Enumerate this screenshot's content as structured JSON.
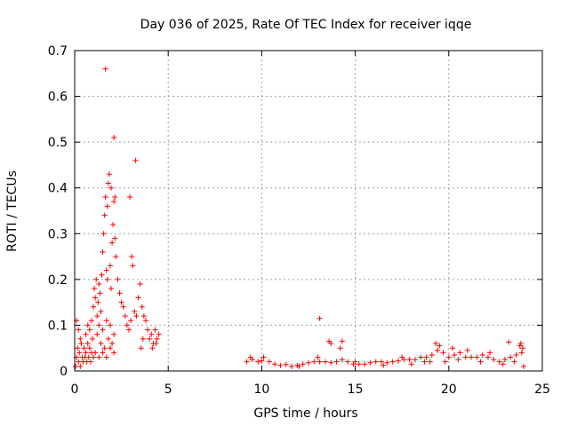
{
  "chart_data": {
    "type": "scatter",
    "title": "Day 036 of 2025, Rate Of TEC Index for receiver iqqe",
    "xlabel": "GPS time / hours",
    "ylabel": "ROTI / TECUs",
    "xlim": [
      0,
      25
    ],
    "ylim": [
      0,
      0.7
    ],
    "xticks": [
      "0",
      "5",
      "10",
      "15",
      "20",
      "25"
    ],
    "yticks": [
      "0",
      "0.1",
      "0.2",
      "0.3",
      "0.4",
      "0.5",
      "0.6",
      "0.7"
    ],
    "xtick_values": [
      0,
      5,
      10,
      15,
      20,
      25
    ],
    "ytick_values": [
      0,
      0.1,
      0.2,
      0.3,
      0.4,
      0.5,
      0.6,
      0.7
    ],
    "grid": true,
    "marker": "+",
    "series": [
      {
        "name": "ROTI",
        "color": "#ff0000",
        "points": [
          [
            0.05,
            0.01
          ],
          [
            0.1,
            0.03
          ],
          [
            0.15,
            0.05
          ],
          [
            0.2,
            0.02
          ],
          [
            0.25,
            0.04
          ],
          [
            0.3,
            0.01
          ],
          [
            0.35,
            0.06
          ],
          [
            0.4,
            0.03
          ],
          [
            0.45,
            0.02
          ],
          [
            0.5,
            0.05
          ],
          [
            0.55,
            0.03
          ],
          [
            0.6,
            0.04
          ],
          [
            0.65,
            0.02
          ],
          [
            0.7,
            0.06
          ],
          [
            0.75,
            0.03
          ],
          [
            0.8,
            0.05
          ],
          [
            0.85,
            0.02
          ],
          [
            0.9,
            0.04
          ],
          [
            0.95,
            0.07
          ],
          [
            1.0,
            0.03
          ],
          [
            0.1,
            0.11
          ],
          [
            0.2,
            0.09
          ],
          [
            0.3,
            0.07
          ],
          [
            0.6,
            0.08
          ],
          [
            0.7,
            0.1
          ],
          [
            0.8,
            0.09
          ],
          [
            0.9,
            0.11
          ],
          [
            1.0,
            0.14
          ],
          [
            1.05,
            0.18
          ],
          [
            1.1,
            0.16
          ],
          [
            1.15,
            0.2
          ],
          [
            1.2,
            0.12
          ],
          [
            1.25,
            0.15
          ],
          [
            1.3,
            0.19
          ],
          [
            1.35,
            0.17
          ],
          [
            1.4,
            0.13
          ],
          [
            1.45,
            0.21
          ],
          [
            1.5,
            0.26
          ],
          [
            1.55,
            0.3
          ],
          [
            1.6,
            0.34
          ],
          [
            1.65,
            0.38
          ],
          [
            1.7,
            0.22
          ],
          [
            1.75,
            0.2
          ],
          [
            1.8,
            0.41
          ],
          [
            1.85,
            0.43
          ],
          [
            1.9,
            0.23
          ],
          [
            1.95,
            0.18
          ],
          [
            2.0,
            0.28
          ],
          [
            2.05,
            0.32
          ],
          [
            2.1,
            0.37
          ],
          [
            2.15,
            0.29
          ],
          [
            2.2,
            0.25
          ],
          [
            2.3,
            0.2
          ],
          [
            2.4,
            0.17
          ],
          [
            2.5,
            0.15
          ],
          [
            1.2,
            0.08
          ],
          [
            1.4,
            0.06
          ],
          [
            1.6,
            0.05
          ],
          [
            1.8,
            0.07
          ],
          [
            2.0,
            0.06
          ],
          [
            2.1,
            0.08
          ],
          [
            1.3,
            0.1
          ],
          [
            1.5,
            0.09
          ],
          [
            1.7,
            0.11
          ],
          [
            1.9,
            0.1
          ],
          [
            1.1,
            0.04
          ],
          [
            1.3,
            0.03
          ],
          [
            1.5,
            0.04
          ],
          [
            1.7,
            0.03
          ],
          [
            1.9,
            0.05
          ],
          [
            2.1,
            0.04
          ],
          [
            2.6,
            0.14
          ],
          [
            2.7,
            0.12
          ],
          [
            2.8,
            0.1
          ],
          [
            2.9,
            0.09
          ],
          [
            3.0,
            0.11
          ],
          [
            3.05,
            0.25
          ],
          [
            3.1,
            0.23
          ],
          [
            3.2,
            0.13
          ],
          [
            3.3,
            0.12
          ],
          [
            3.4,
            0.16
          ],
          [
            3.5,
            0.19
          ],
          [
            3.6,
            0.14
          ],
          [
            3.7,
            0.12
          ],
          [
            3.8,
            0.11
          ],
          [
            3.9,
            0.09
          ],
          [
            4.0,
            0.07
          ],
          [
            4.1,
            0.08
          ],
          [
            4.2,
            0.06
          ],
          [
            4.3,
            0.09
          ],
          [
            4.4,
            0.07
          ],
          [
            4.5,
            0.08
          ],
          [
            4.15,
            0.05
          ],
          [
            4.35,
            0.06
          ],
          [
            3.55,
            0.05
          ],
          [
            3.65,
            0.07
          ],
          [
            1.65,
            0.66
          ],
          [
            2.1,
            0.51
          ],
          [
            3.25,
            0.46
          ],
          [
            2.95,
            0.38
          ],
          [
            1.95,
            0.4
          ],
          [
            2.15,
            0.38
          ],
          [
            1.75,
            0.36
          ],
          [
            9.2,
            0.02
          ],
          [
            9.5,
            0.025
          ],
          [
            9.8,
            0.02
          ],
          [
            10.1,
            0.03
          ],
          [
            10.4,
            0.02
          ],
          [
            10.7,
            0.015
          ],
          [
            11.0,
            0.012
          ],
          [
            11.3,
            0.014
          ],
          [
            11.6,
            0.01
          ],
          [
            11.9,
            0.012
          ],
          [
            12.2,
            0.015
          ],
          [
            12.5,
            0.018
          ],
          [
            12.8,
            0.02
          ],
          [
            13.1,
            0.02
          ],
          [
            13.4,
            0.02
          ],
          [
            13.7,
            0.018
          ],
          [
            14.0,
            0.02
          ],
          [
            14.3,
            0.025
          ],
          [
            14.6,
            0.02
          ],
          [
            14.9,
            0.015
          ],
          [
            15.2,
            0.015
          ],
          [
            15.5,
            0.015
          ],
          [
            15.8,
            0.018
          ],
          [
            16.1,
            0.02
          ],
          [
            16.4,
            0.02
          ],
          [
            16.7,
            0.018
          ],
          [
            17.0,
            0.02
          ],
          [
            17.3,
            0.022
          ],
          [
            17.6,
            0.025
          ],
          [
            17.9,
            0.025
          ],
          [
            18.2,
            0.025
          ],
          [
            18.5,
            0.03
          ],
          [
            18.8,
            0.03
          ],
          [
            19.1,
            0.035
          ],
          [
            19.4,
            0.045
          ],
          [
            19.7,
            0.04
          ],
          [
            20.0,
            0.03
          ],
          [
            20.3,
            0.035
          ],
          [
            20.6,
            0.04
          ],
          [
            20.9,
            0.03
          ],
          [
            21.2,
            0.03
          ],
          [
            21.5,
            0.03
          ],
          [
            21.8,
            0.035
          ],
          [
            22.1,
            0.03
          ],
          [
            22.4,
            0.025
          ],
          [
            22.7,
            0.02
          ],
          [
            23.0,
            0.025
          ],
          [
            23.3,
            0.03
          ],
          [
            23.6,
            0.035
          ],
          [
            23.9,
            0.04
          ],
          [
            13.1,
            0.115
          ],
          [
            13.6,
            0.065
          ],
          [
            13.7,
            0.06
          ],
          [
            14.3,
            0.065
          ],
          [
            14.2,
            0.05
          ],
          [
            19.3,
            0.06
          ],
          [
            19.5,
            0.055
          ],
          [
            20.2,
            0.05
          ],
          [
            23.2,
            0.063
          ],
          [
            23.8,
            0.055
          ],
          [
            9.4,
            0.03
          ],
          [
            10.0,
            0.022
          ],
          [
            12.0,
            0.01
          ],
          [
            13.0,
            0.03
          ],
          [
            15.0,
            0.02
          ],
          [
            17.5,
            0.03
          ],
          [
            18.0,
            0.015
          ],
          [
            19.0,
            0.02
          ],
          [
            20.5,
            0.025
          ],
          [
            21.0,
            0.045
          ],
          [
            21.7,
            0.02
          ],
          [
            22.2,
            0.04
          ],
          [
            22.9,
            0.015
          ],
          [
            23.5,
            0.02
          ],
          [
            24.0,
            0.01
          ],
          [
            23.85,
            0.06
          ],
          [
            23.95,
            0.05
          ],
          [
            19.8,
            0.02
          ],
          [
            18.7,
            0.02
          ],
          [
            16.5,
            0.012
          ]
        ]
      }
    ]
  }
}
